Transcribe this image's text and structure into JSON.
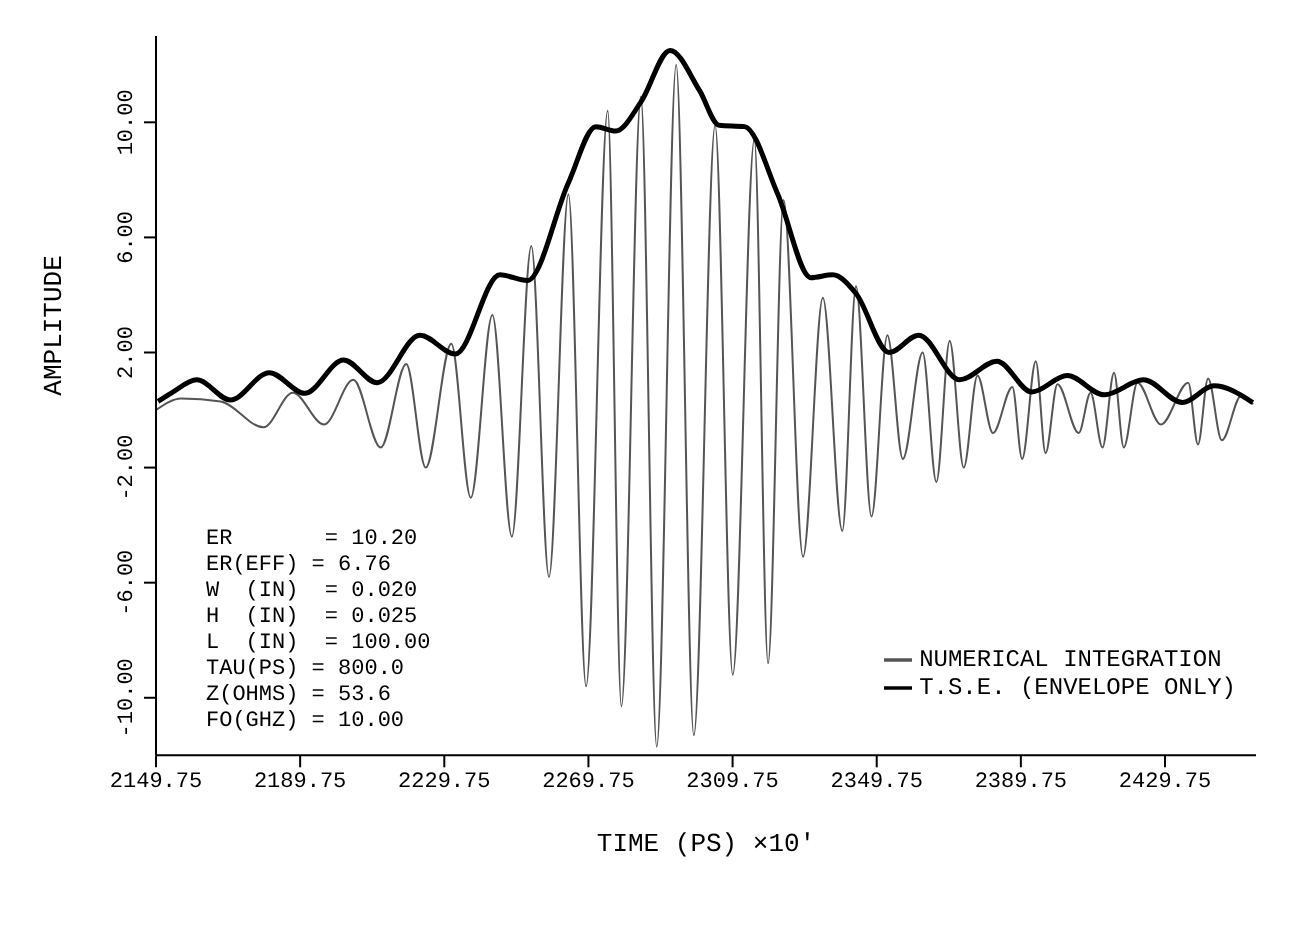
{
  "chart_data": {
    "type": "line",
    "xlabel": "TIME (PS) ×10'",
    "ylabel": "AMPLITUDE",
    "xlim": [
      2149.75,
      2455
    ],
    "xticks": [
      2149.75,
      2189.75,
      2229.75,
      2269.75,
      2309.75,
      2349.75,
      2389.75,
      2429.75
    ],
    "ylim": [
      -12,
      13
    ],
    "yticks": [
      {
        "value": -10,
        "label": "-10.00"
      },
      {
        "value": -6,
        "label": "-6.00"
      },
      {
        "value": -2,
        "label": "-2.00"
      },
      {
        "value": 2,
        "label": "2.00"
      },
      {
        "value": 6,
        "label": "6.00"
      },
      {
        "value": 10,
        "label": "10.00"
      }
    ],
    "grid": false,
    "legend": "bottom right",
    "marker": "none",
    "line_style": "solid",
    "annotations": [
      "ER       = 10.20",
      "ER(EFF) = 6.76",
      "W  (IN)  = 0.020",
      "H  (IN)  = 0.025",
      "L  (IN)  = 100.00",
      "TAU(PS) = 800.0",
      "Z(OHMS) = 53.6",
      "FO(GHZ) = 10.00"
    ],
    "series": [
      {
        "name": "NUMERICAL INTEGRATION",
        "color": "#555555",
        "x": [
          2149.75,
          2156.8,
          2167.7,
          2179.6,
          2187.7,
          2196.4,
          2204.5,
          2212.1,
          2219.2,
          2224.6,
          2231.7,
          2237.1,
          2243.1,
          2248.5,
          2253.9,
          2258.8,
          2264.2,
          2269.1,
          2275.1,
          2278.9,
          2284.3,
          2288.7,
          2294.1,
          2299.0,
          2304.9,
          2309.8,
          2315.8,
          2319.6,
          2323.9,
          2329.3,
          2334.8,
          2340.2,
          2344.0,
          2348.3,
          2352.7,
          2357.0,
          2362.5,
          2366.3,
          2370.0,
          2373.9,
          2377.7,
          2382.0,
          2387.4,
          2390.1,
          2393.9,
          2396.6,
          2399.9,
          2405.8,
          2409.1,
          2412.4,
          2415.6,
          2418.3,
          2422.1,
          2428.6,
          2436.2,
          2438.9,
          2441.7,
          2445.5,
          2450.9,
          2454.2
        ],
        "values": [
          0.0,
          0.4,
          0.3,
          -0.6,
          0.6,
          -0.5,
          1.05,
          -1.3,
          1.6,
          -2.0,
          2.3,
          -3.05,
          3.3,
          -4.4,
          5.7,
          -5.8,
          7.5,
          -9.6,
          10.4,
          -10.3,
          10.9,
          -11.7,
          12.0,
          -11.3,
          9.9,
          -9.2,
          9.4,
          -8.8,
          7.3,
          -5.1,
          3.9,
          -4.2,
          4.3,
          -3.7,
          2.6,
          -1.7,
          2.0,
          -2.5,
          2.4,
          -2.0,
          1.2,
          -0.8,
          0.8,
          -1.7,
          1.7,
          -1.5,
          0.9,
          -0.8,
          0.6,
          -1.3,
          1.3,
          -1.3,
          0.95,
          -0.5,
          0.95,
          -1.2,
          1.1,
          -1.05,
          0.5,
          0.2
        ]
      },
      {
        "name": "T.S.E. (ENVELOPE ONLY)",
        "color": "#000000",
        "x": [
          2150.3,
          2154.1,
          2161.1,
          2170.4,
          2181.2,
          2191.0,
          2201.8,
          2211.1,
          2223.0,
          2232.8,
          2245.2,
          2252.8,
          2264.2,
          2271.8,
          2277.3,
          2284.3,
          2292.4,
          2300.6,
          2306.0,
          2313.1,
          2322.3,
          2331.5,
          2337.5,
          2344.0,
          2353.2,
          2361.4,
          2372.8,
          2383.1,
          2392.8,
          2402.6,
          2412.9,
          2423.8,
          2434.6,
          2443.3,
          2454.1
        ],
        "values": [
          0.3,
          0.6,
          1.05,
          0.35,
          1.3,
          0.58,
          1.74,
          0.95,
          2.6,
          1.95,
          4.7,
          4.5,
          7.9,
          9.85,
          9.7,
          10.7,
          12.5,
          11.1,
          9.9,
          9.85,
          7.5,
          4.6,
          4.7,
          4.05,
          2.0,
          2.6,
          1.05,
          1.7,
          0.63,
          1.2,
          0.53,
          1.05,
          0.26,
          0.84,
          0.26
        ]
      }
    ]
  }
}
